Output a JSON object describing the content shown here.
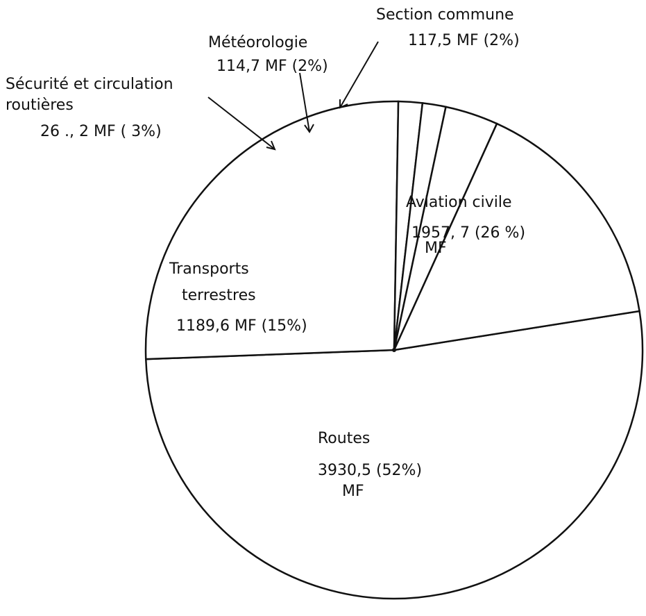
{
  "chart_data": {
    "type": "pie",
    "unit": "MF",
    "slices": [
      {
        "name": "Routes",
        "value": 3930.5,
        "value_text": "3930,5",
        "percent": 52,
        "percent_text": "(52%)"
      },
      {
        "name": "Aviation civile",
        "value": 1957.7,
        "value_text": "1957, 7",
        "percent": 26,
        "percent_text": "(26 %)"
      },
      {
        "name": "Section commune",
        "value": 117.5,
        "value_text": "117,5 MF (2%)",
        "percent": 2
      },
      {
        "name": "Météorologie",
        "value": 114.7,
        "value_text": "114,7 MF (2%)",
        "percent": 2
      },
      {
        "name": "Sécurité et circulation routières",
        "value": 261.2,
        "value_text": "26 ., 2 MF ( 3%)",
        "percent": 3
      },
      {
        "name": "Transports terrestres",
        "value": 1189.6,
        "value_text": "1189,6 MF (15%)",
        "percent": 15
      }
    ],
    "labels": {
      "routes": {
        "name": "Routes",
        "value": "3930,5  (52%)",
        "unit": "MF"
      },
      "aviation": {
        "name": "Aviation civile",
        "value": "1957, 7  (26 %)",
        "unit": "MF"
      },
      "section": {
        "name": "Section commune",
        "value": "117,5 MF (2%)"
      },
      "meteo": {
        "name": "Météorologie",
        "value": "114,7 MF (2%)"
      },
      "securite": {
        "name1": "Sécurité et circulation",
        "name2": "routières",
        "value": "26 ., 2 MF ( 3%)"
      },
      "transports": {
        "name1": "Transports",
        "name2": "terrestres",
        "value": "1189,6 MF (15%)"
      }
    }
  }
}
